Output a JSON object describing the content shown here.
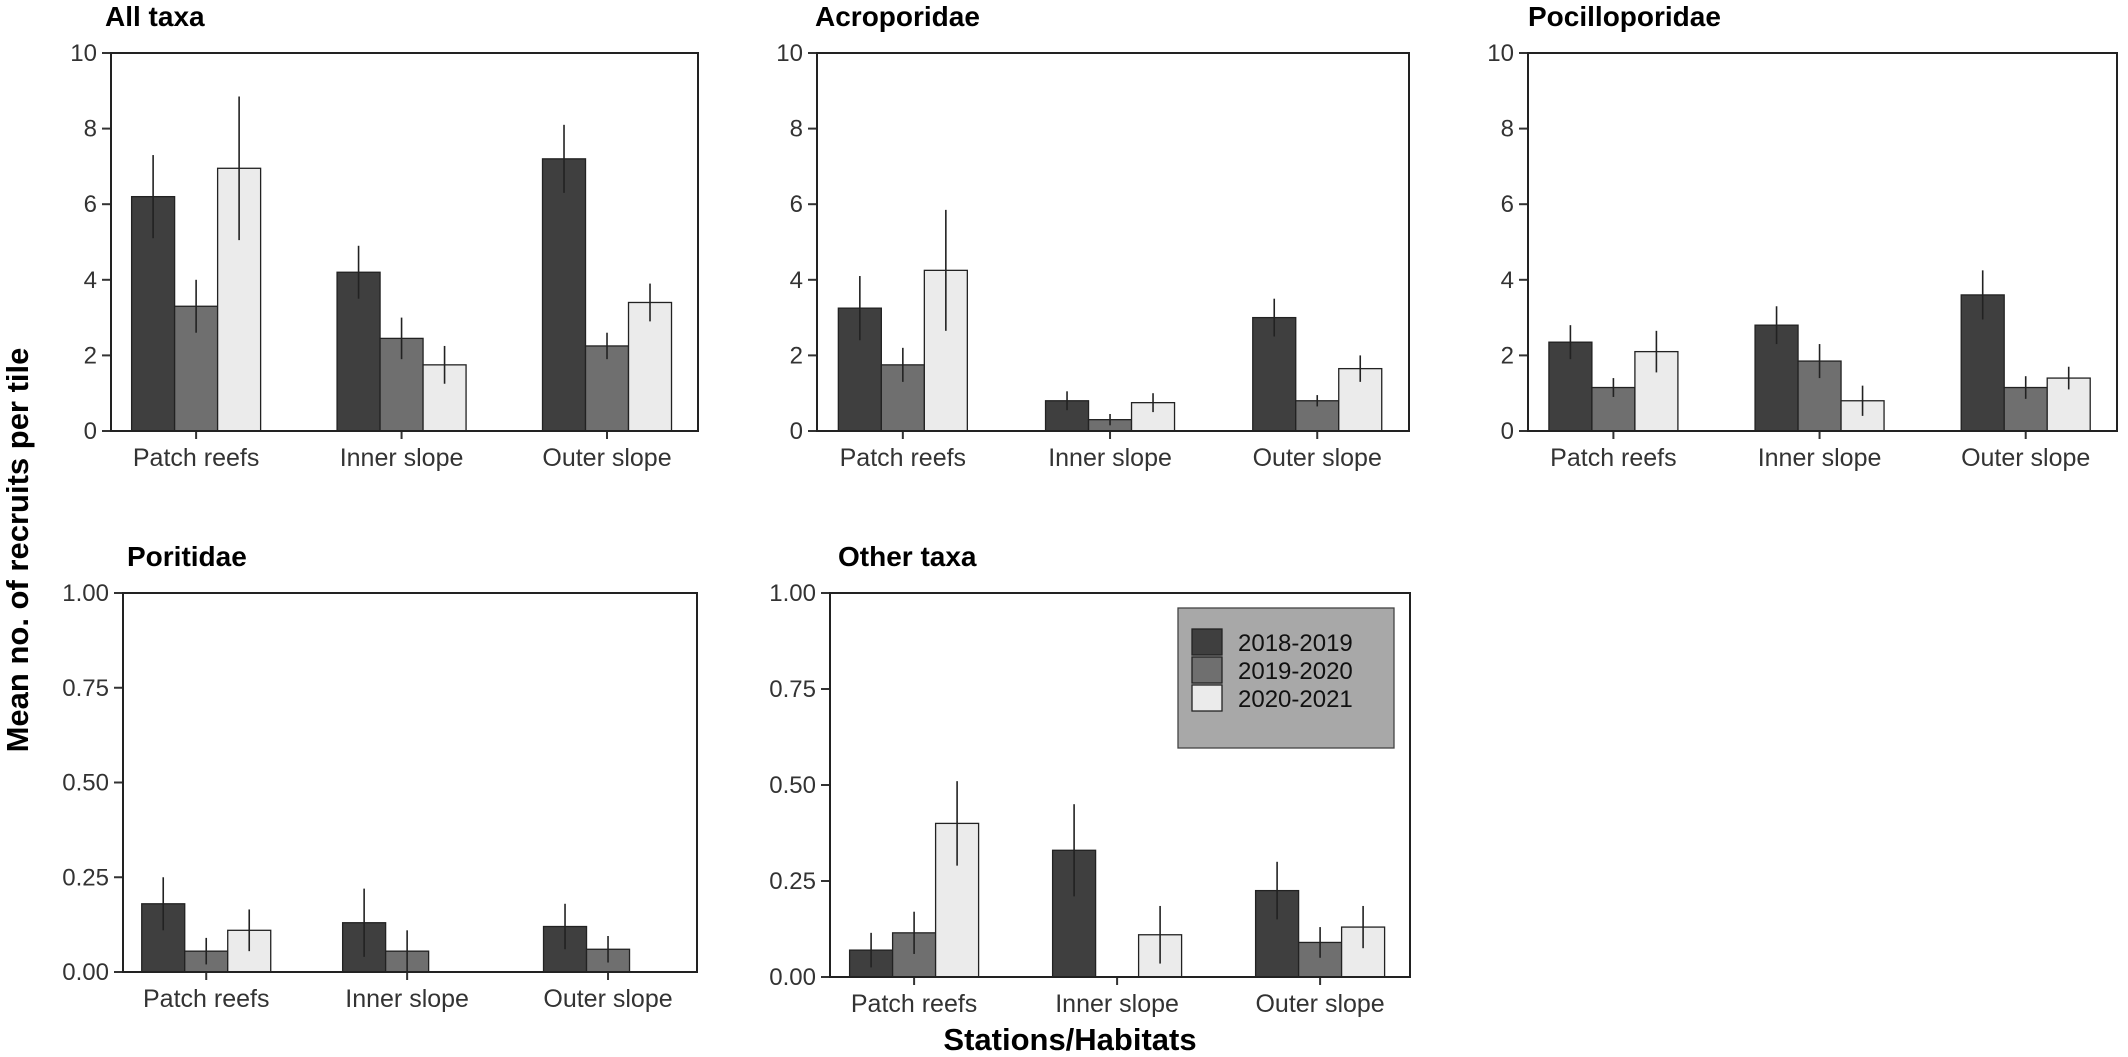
{
  "figure": {
    "ylabel": "Mean no. of recruits per tile",
    "xlabel": "Stations/Habitats"
  },
  "legend": {
    "placement": "inside top-right of Other taxa panel",
    "items": [
      "2018-2019",
      "2019-2020",
      "2020-2021"
    ]
  },
  "colors": {
    "2018-2019": "#3f3f3f",
    "2019-2020": "#6f6f6f",
    "2020-2021": "#ebebeb",
    "legend_bg": "#a8a8a8"
  },
  "chart_data": [
    {
      "type": "bar",
      "title": "All taxa",
      "categories": [
        "Patch reefs",
        "Inner slope",
        "Outer slope"
      ],
      "ylim": [
        0,
        10
      ],
      "yticks": [
        "0",
        "2",
        "4",
        "6",
        "8",
        "10"
      ],
      "series": [
        {
          "name": "2018-2019",
          "values": [
            6.2,
            4.2,
            7.2
          ],
          "err": [
            1.1,
            0.7,
            0.9
          ]
        },
        {
          "name": "2019-2020",
          "values": [
            3.3,
            2.45,
            2.25
          ],
          "err": [
            0.7,
            0.55,
            0.35
          ]
        },
        {
          "name": "2020-2021",
          "values": [
            6.95,
            1.75,
            3.4
          ],
          "err": [
            1.9,
            0.5,
            0.5
          ]
        }
      ]
    },
    {
      "type": "bar",
      "title": "Acroporidae",
      "categories": [
        "Patch reefs",
        "Inner slope",
        "Outer slope"
      ],
      "ylim": [
        0,
        10
      ],
      "yticks": [
        "0",
        "2",
        "4",
        "6",
        "8",
        "10"
      ],
      "series": [
        {
          "name": "2018-2019",
          "values": [
            3.25,
            0.8,
            3.0
          ],
          "err": [
            0.85,
            0.25,
            0.5
          ]
        },
        {
          "name": "2019-2020",
          "values": [
            1.75,
            0.3,
            0.8
          ],
          "err": [
            0.45,
            0.15,
            0.15
          ]
        },
        {
          "name": "2020-2021",
          "values": [
            4.25,
            0.75,
            1.65
          ],
          "err": [
            1.6,
            0.25,
            0.35
          ]
        }
      ]
    },
    {
      "type": "bar",
      "title": "Pocilloporidae",
      "categories": [
        "Patch reefs",
        "Inner slope",
        "Outer slope"
      ],
      "ylim": [
        0,
        10
      ],
      "yticks": [
        "0",
        "2",
        "4",
        "6",
        "8",
        "10"
      ],
      "series": [
        {
          "name": "2018-2019",
          "values": [
            2.35,
            2.8,
            3.6
          ],
          "err": [
            0.45,
            0.5,
            0.65
          ]
        },
        {
          "name": "2019-2020",
          "values": [
            1.15,
            1.85,
            1.15
          ],
          "err": [
            0.25,
            0.45,
            0.3
          ]
        },
        {
          "name": "2020-2021",
          "values": [
            2.1,
            0.8,
            1.4
          ],
          "err": [
            0.55,
            0.4,
            0.3
          ]
        }
      ]
    },
    {
      "type": "bar",
      "title": "Poritidae",
      "categories": [
        "Patch reefs",
        "Inner slope",
        "Outer slope"
      ],
      "ylim": [
        0,
        1
      ],
      "yticks": [
        "0.00",
        "0.25",
        "0.50",
        "0.75",
        "1.00"
      ],
      "series": [
        {
          "name": "2018-2019",
          "values": [
            0.18,
            0.13,
            0.12
          ],
          "err": [
            0.07,
            0.09,
            0.06
          ]
        },
        {
          "name": "2019-2020",
          "values": [
            0.055,
            0.055,
            0.06
          ],
          "err": [
            0.035,
            0.055,
            0.035
          ]
        },
        {
          "name": "2020-2021",
          "values": [
            0.11,
            0.0,
            0.0
          ],
          "err": [
            0.055,
            0,
            0
          ]
        }
      ]
    },
    {
      "type": "bar",
      "title": "Other taxa",
      "categories": [
        "Patch reefs",
        "Inner slope",
        "Outer slope"
      ],
      "ylim": [
        0,
        1
      ],
      "yticks": [
        "0.00",
        "0.25",
        "0.50",
        "0.75",
        "1.00"
      ],
      "series": [
        {
          "name": "2018-2019",
          "values": [
            0.07,
            0.33,
            0.225
          ],
          "err": [
            0.045,
            0.12,
            0.075
          ]
        },
        {
          "name": "2019-2020",
          "values": [
            0.115,
            0.0,
            0.09
          ],
          "err": [
            0.055,
            0,
            0.04
          ]
        },
        {
          "name": "2020-2021",
          "values": [
            0.4,
            0.11,
            0.13
          ],
          "err": [
            0.11,
            0.075,
            0.055
          ]
        }
      ]
    }
  ]
}
